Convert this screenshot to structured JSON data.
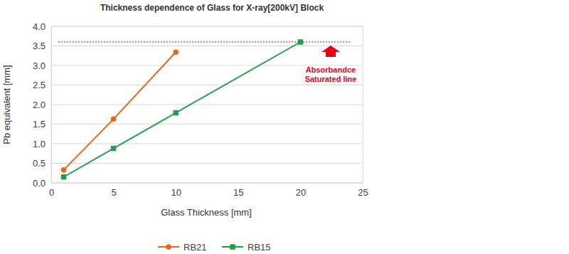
{
  "chart_data": {
    "type": "line",
    "title": "Thickness dependence of Glass for X-ray[200kV] Block",
    "x_label": "Glass Thickness [mm]",
    "y_label": "Pb equivalent [mm]",
    "xlim": [
      0,
      25
    ],
    "xticks": [
      0,
      5,
      10,
      15,
      20,
      25
    ],
    "ylim": [
      0,
      4.0
    ],
    "yticks": [
      {
        "value": 0,
        "label": "0.0"
      },
      0.5,
      {
        "value": 1,
        "label": "1.0"
      },
      1.5,
      {
        "value": 2,
        "label": "2.0"
      },
      2.5,
      {
        "value": 3,
        "label": "3.0"
      },
      3.5,
      {
        "value": 4,
        "label": "4.0"
      }
    ],
    "grid": true,
    "legend": "bottom",
    "series": [
      {
        "name": "RB21",
        "color": "#e8631c",
        "marker": "circle",
        "line_style": "solid",
        "x": [
          1,
          5,
          10
        ],
        "values": [
          0.33,
          1.63,
          3.34
        ]
      },
      {
        "name": "RB15",
        "color": "#1f9e4b",
        "marker": "square",
        "line_style": "solid",
        "x": [
          1,
          5,
          10,
          20
        ],
        "values": [
          0.15,
          0.88,
          1.79,
          3.6
        ]
      }
    ],
    "annotation": {
      "lines": [
        "Absorbandce",
        "Saturated line"
      ],
      "y": 3.6,
      "color": "#e60012",
      "line_style": "dotted"
    }
  }
}
